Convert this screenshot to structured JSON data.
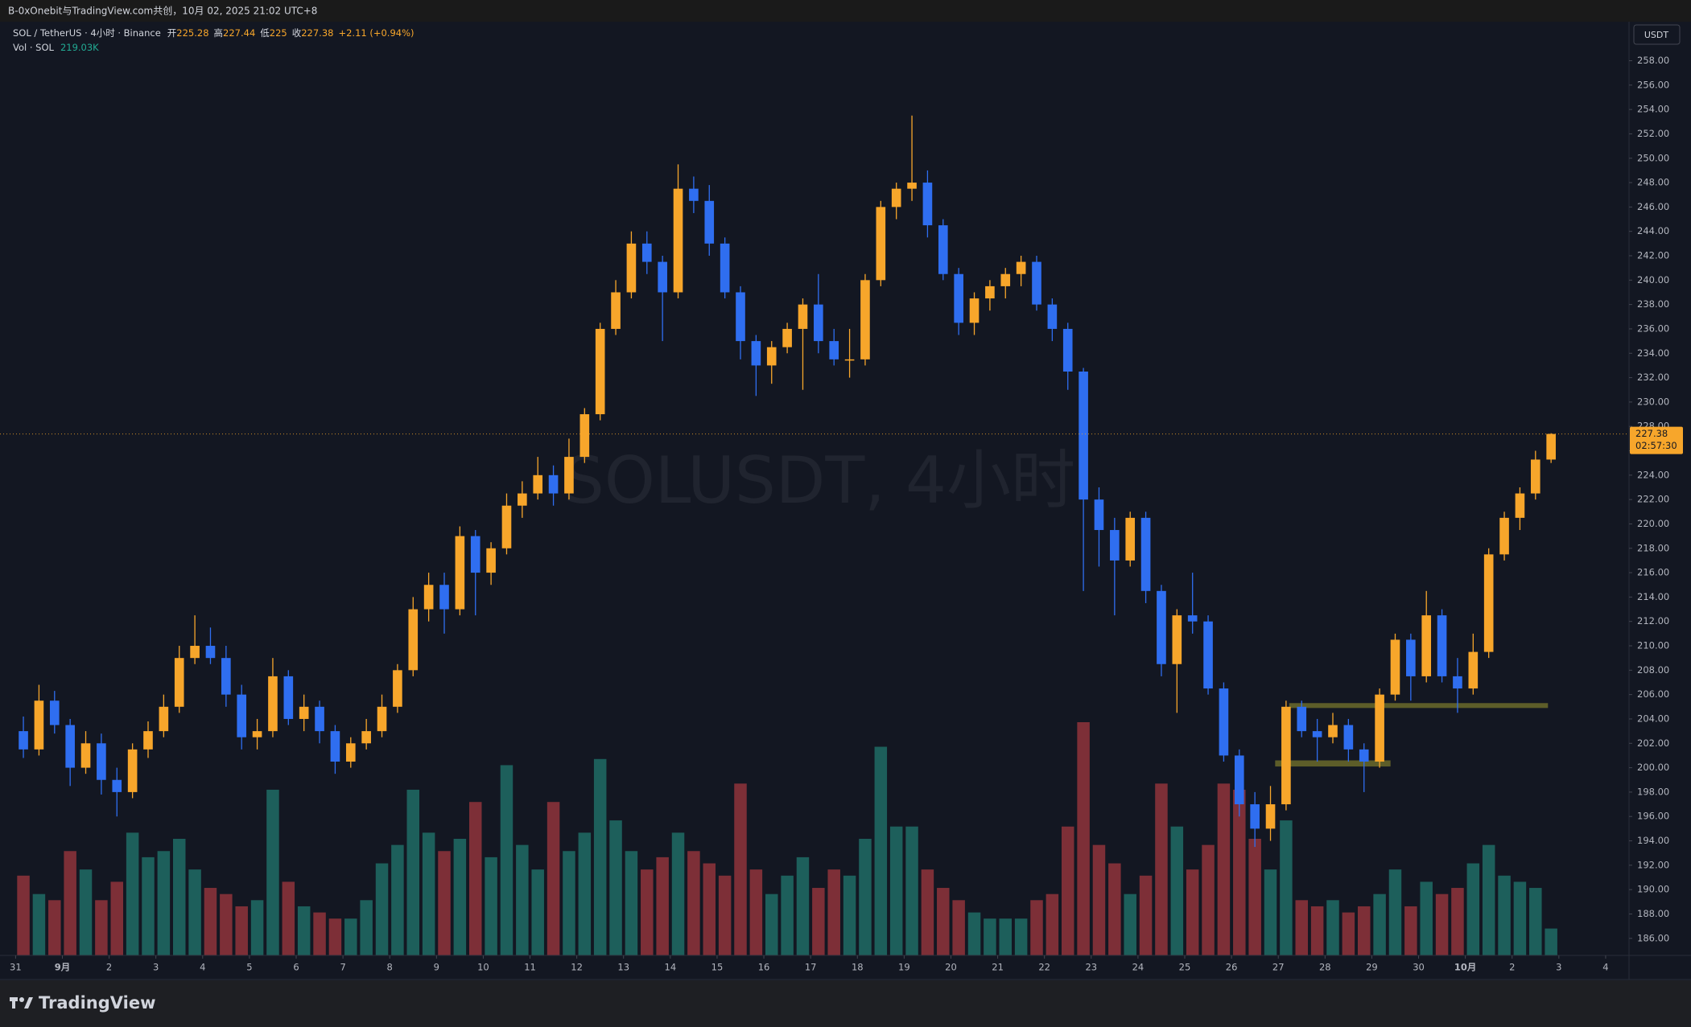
{
  "top_bar": "B-0xOnebit与TradingView.com共创，10月 02, 2025 21:02 UTC+8",
  "footer": {
    "brand": "TradingView"
  },
  "chart_data": {
    "type": "candlestick",
    "symbol": "SOL / TetherUS · 4小时 · Binance",
    "watermark": "SOLUSDT, 4小时",
    "ohlc_labels": [
      "开",
      "高",
      "低",
      "收"
    ],
    "change": "+2.11 (+0.94%)",
    "currency": "USDT",
    "countdown": "02:57:30",
    "up_color": "#f7a62b",
    "down_color": "#2f6ef0",
    "grid": false,
    "candles": [
      [
        203,
        204.2,
        200.8,
        201.5
      ],
      [
        201.5,
        206.8,
        201,
        205.5
      ],
      [
        205.5,
        206.3,
        202.8,
        203.5
      ],
      [
        203.5,
        204,
        198.5,
        200
      ],
      [
        200,
        203,
        199.5,
        202
      ],
      [
        202,
        202.8,
        197.8,
        199
      ],
      [
        199,
        200,
        196,
        198
      ],
      [
        198,
        202,
        197.5,
        201.5
      ],
      [
        201.5,
        203.8,
        200.8,
        203
      ],
      [
        203,
        206,
        202.5,
        205
      ],
      [
        205,
        210,
        204.5,
        209
      ],
      [
        209,
        212.5,
        208.5,
        210
      ],
      [
        210,
        211.5,
        208.5,
        209
      ],
      [
        209,
        210,
        205,
        206
      ],
      [
        206,
        206.8,
        201.5,
        202.5
      ],
      [
        202.5,
        204,
        201.5,
        203
      ],
      [
        203,
        209,
        202.5,
        207.5
      ],
      [
        207.5,
        208,
        203.5,
        204
      ],
      [
        204,
        206,
        203,
        205
      ],
      [
        205,
        205.5,
        202,
        203
      ],
      [
        203,
        203.5,
        199.5,
        200.5
      ],
      [
        200.5,
        202.5,
        200,
        202
      ],
      [
        202,
        204,
        201.5,
        203
      ],
      [
        203,
        206,
        202.5,
        205
      ],
      [
        205,
        208.5,
        204.5,
        208
      ],
      [
        208,
        214,
        207.5,
        213
      ],
      [
        213,
        216,
        212,
        215
      ],
      [
        215,
        216,
        211,
        213
      ],
      [
        213,
        219.8,
        212.5,
        219
      ],
      [
        219,
        219.5,
        212.5,
        216
      ],
      [
        216,
        218.5,
        215,
        218
      ],
      [
        218,
        222.5,
        217.5,
        221.5
      ],
      [
        221.5,
        223.5,
        220.5,
        222.5
      ],
      [
        222.5,
        225.5,
        222,
        224
      ],
      [
        224,
        224.8,
        221.5,
        222.5
      ],
      [
        222.5,
        227,
        222,
        225.5
      ],
      [
        225.5,
        229.5,
        225,
        229
      ],
      [
        229,
        236.5,
        228.5,
        236
      ],
      [
        236,
        240,
        235.5,
        239
      ],
      [
        239,
        244,
        238.5,
        243
      ],
      [
        243,
        244,
        240.5,
        241.5
      ],
      [
        241.5,
        242,
        235,
        239
      ],
      [
        239,
        249.5,
        238.5,
        247.5
      ],
      [
        247.5,
        248.5,
        245.5,
        246.5
      ],
      [
        246.5,
        247.8,
        242,
        243
      ],
      [
        243,
        243.5,
        238.5,
        239
      ],
      [
        239,
        239.5,
        233.5,
        235
      ],
      [
        235,
        235.5,
        230.5,
        233
      ],
      [
        233,
        235,
        231.5,
        234.5
      ],
      [
        234.5,
        236.5,
        234,
        236
      ],
      [
        236,
        238.5,
        231,
        238
      ],
      [
        238,
        240.5,
        234,
        235
      ],
      [
        235,
        236,
        233,
        233.5
      ],
      [
        233.5,
        236,
        232,
        233.5
      ],
      [
        233.5,
        240.5,
        233,
        240
      ],
      [
        240,
        246.5,
        239.5,
        246
      ],
      [
        246,
        248,
        245,
        247.5
      ],
      [
        247.5,
        253.5,
        246.5,
        248
      ],
      [
        248,
        249,
        243.5,
        244.5
      ],
      [
        244.5,
        245,
        240,
        240.5
      ],
      [
        240.5,
        241,
        235.5,
        236.5
      ],
      [
        236.5,
        239,
        235.5,
        238.5
      ],
      [
        238.5,
        240,
        237.5,
        239.5
      ],
      [
        239.5,
        241,
        238.5,
        240.5
      ],
      [
        240.5,
        242,
        239.5,
        241.5
      ],
      [
        241.5,
        242,
        237.5,
        238
      ],
      [
        238,
        238.5,
        235,
        236
      ],
      [
        236,
        236.5,
        231,
        232.5
      ],
      [
        232.5,
        232.8,
        214.5,
        222
      ],
      [
        222,
        223,
        216.5,
        219.5
      ],
      [
        219.5,
        220.5,
        212.5,
        217
      ],
      [
        217,
        221,
        216.5,
        220.5
      ],
      [
        220.5,
        221,
        213.5,
        214.5
      ],
      [
        214.5,
        215,
        207.5,
        208.5
      ],
      [
        208.5,
        213,
        204.5,
        212.5
      ],
      [
        212.5,
        216,
        211,
        212
      ],
      [
        212,
        212.5,
        206,
        206.5
      ],
      [
        206.5,
        207,
        200.5,
        201
      ],
      [
        201,
        201.5,
        196,
        197
      ],
      [
        197,
        198,
        193.5,
        195
      ],
      [
        195,
        198.5,
        194,
        197
      ],
      [
        197,
        205.5,
        196.5,
        205
      ],
      [
        205,
        205.5,
        202.5,
        203
      ],
      [
        203,
        204,
        200.5,
        202.5
      ],
      [
        202.5,
        204.5,
        202,
        203.5
      ],
      [
        203.5,
        204,
        200.5,
        201.5
      ],
      [
        201.5,
        202,
        198,
        200.5
      ],
      [
        200.5,
        206.5,
        200,
        206
      ],
      [
        206,
        211,
        205.5,
        210.5
      ],
      [
        210.5,
        211,
        205.5,
        207.5
      ],
      [
        207.5,
        214.5,
        207,
        212.5
      ],
      [
        212.5,
        213,
        207,
        207.5
      ],
      [
        207.5,
        209,
        204.5,
        206.5
      ],
      [
        206.5,
        211,
        206,
        209.5
      ],
      [
        209.5,
        218,
        209,
        217.5
      ],
      [
        217.5,
        221,
        217,
        220.5
      ],
      [
        220.5,
        223,
        219.5,
        222.5
      ],
      [
        222.5,
        226,
        222,
        225.28
      ],
      [
        225.28,
        227.44,
        225,
        227.38
      ]
    ],
    "volume": {
      "name": "Vol · SOL",
      "last_label": "219.03K",
      "up_color": "#1d5f5b",
      "down_color": "#7d2f37",
      "values": [
        650,
        500,
        450,
        850,
        700,
        450,
        600,
        1000,
        800,
        850,
        950,
        700,
        550,
        500,
        400,
        450,
        1350,
        600,
        400,
        350,
        300,
        300,
        450,
        750,
        900,
        1350,
        1000,
        850,
        950,
        1250,
        800,
        1550,
        900,
        700,
        1250,
        850,
        1000,
        1600,
        1100,
        850,
        700,
        800,
        1000,
        850,
        750,
        650,
        1400,
        700,
        500,
        650,
        800,
        550,
        700,
        650,
        950,
        1700,
        1050,
        1050,
        700,
        550,
        450,
        350,
        300,
        300,
        300,
        450,
        500,
        1050,
        1900,
        900,
        750,
        500,
        650,
        1400,
        1050,
        700,
        900,
        1400,
        1350,
        950,
        700,
        1100,
        450,
        400,
        450,
        350,
        400,
        500,
        700,
        400,
        600,
        500,
        550,
        750,
        900,
        650,
        600,
        550,
        219.03
      ]
    },
    "zones": [
      {
        "x": [
          81.7,
          98.3
        ],
        "y": [
          204.9,
          205.3
        ],
        "color": "#6b6a2a"
      },
      {
        "x": [
          80.8,
          88.2
        ],
        "y": [
          200.1,
          200.6
        ],
        "color": "#6b6a2a"
      }
    ],
    "xlim": [
      -1,
      103.5
    ],
    "xticks": [
      {
        "value": 0,
        "label": "31"
      },
      {
        "value": 3,
        "label": "9月"
      },
      {
        "value": 6,
        "label": "2"
      },
      {
        "value": 9,
        "label": "3"
      },
      {
        "value": 12,
        "label": "4"
      },
      {
        "value": 15,
        "label": "5"
      },
      {
        "value": 18,
        "label": "6"
      },
      {
        "value": 21,
        "label": "7"
      },
      {
        "value": 24,
        "label": "8"
      },
      {
        "value": 27,
        "label": "9"
      },
      {
        "value": 30,
        "label": "10"
      },
      {
        "value": 33,
        "label": "11"
      },
      {
        "value": 36,
        "label": "12"
      },
      {
        "value": 39,
        "label": "13"
      },
      {
        "value": 42,
        "label": "14"
      },
      {
        "value": 45,
        "label": "15"
      },
      {
        "value": 48,
        "label": "16"
      },
      {
        "value": 51,
        "label": "17"
      },
      {
        "value": 54,
        "label": "18"
      },
      {
        "value": 57,
        "label": "19"
      },
      {
        "value": 60,
        "label": "20"
      },
      {
        "value": 63,
        "label": "21"
      },
      {
        "value": 66,
        "label": "22"
      },
      {
        "value": 69,
        "label": "23"
      },
      {
        "value": 72,
        "label": "24"
      },
      {
        "value": 75,
        "label": "25"
      },
      {
        "value": 78,
        "label": "26"
      },
      {
        "value": 81,
        "label": "27"
      },
      {
        "value": 84,
        "label": "28"
      },
      {
        "value": 87,
        "label": "29"
      },
      {
        "value": 90,
        "label": "30"
      },
      {
        "value": 93,
        "label": "10月"
      },
      {
        "value": 96,
        "label": "2"
      },
      {
        "value": 99,
        "label": "3"
      },
      {
        "value": 102,
        "label": "4"
      }
    ],
    "ylim": [
      184.6,
      261.2
    ],
    "yticks": [
      {
        "value": 186,
        "label": "186.00"
      },
      {
        "value": 188,
        "label": "188.00"
      },
      {
        "value": 190,
        "label": "190.00"
      },
      {
        "value": 192,
        "label": "192.00"
      },
      {
        "value": 194,
        "label": "194.00"
      },
      {
        "value": 196,
        "label": "196.00"
      },
      {
        "value": 198,
        "label": "198.00"
      },
      {
        "value": 200,
        "label": "200.00"
      },
      {
        "value": 202,
        "label": "202.00"
      },
      {
        "value": 204,
        "label": "204.00"
      },
      {
        "value": 206,
        "label": "206.00"
      },
      {
        "value": 208,
        "label": "208.00"
      },
      {
        "value": 210,
        "label": "210.00"
      },
      {
        "value": 212,
        "label": "212.00"
      },
      {
        "value": 214,
        "label": "214.00"
      },
      {
        "value": 216,
        "label": "216.00"
      },
      {
        "value": 218,
        "label": "218.00"
      },
      {
        "value": 220,
        "label": "220.00"
      },
      {
        "value": 222,
        "label": "222.00"
      },
      {
        "value": 224,
        "label": "224.00"
      },
      {
        "value": 226,
        "label": "226.00"
      },
      {
        "value": 228,
        "label": "228.00"
      },
      {
        "value": 230,
        "label": "230.00"
      },
      {
        "value": 232,
        "label": "232.00"
      },
      {
        "value": 234,
        "label": "234.00"
      },
      {
        "value": 236,
        "label": "236.00"
      },
      {
        "value": 238,
        "label": "238.00"
      },
      {
        "value": 240,
        "label": "240.00"
      },
      {
        "value": 242,
        "label": "242.00"
      },
      {
        "value": 244,
        "label": "244.00"
      },
      {
        "value": 246,
        "label": "246.00"
      },
      {
        "value": 248,
        "label": "248.00"
      },
      {
        "value": 250,
        "label": "250.00"
      },
      {
        "value": 252,
        "label": "252.00"
      },
      {
        "value": 254,
        "label": "254.00"
      },
      {
        "value": 256,
        "label": "256.00"
      },
      {
        "value": 258,
        "label": "258.00"
      }
    ]
  }
}
